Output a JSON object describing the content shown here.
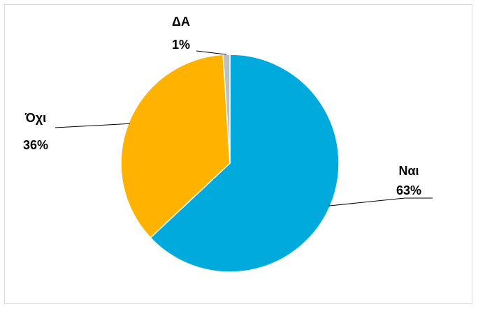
{
  "chart_data": {
    "type": "pie",
    "title": "",
    "legend": "none",
    "slices": [
      {
        "label": "Ναι",
        "value": 63,
        "pct_label": "63%",
        "color": "#00AADD"
      },
      {
        "label": "Όχι",
        "value": 36,
        "pct_label": "36%",
        "color": "#FFB300"
      },
      {
        "label": "ΔΑ",
        "value": 1,
        "pct_label": "1%",
        "color": "#BFBFBF"
      }
    ]
  }
}
